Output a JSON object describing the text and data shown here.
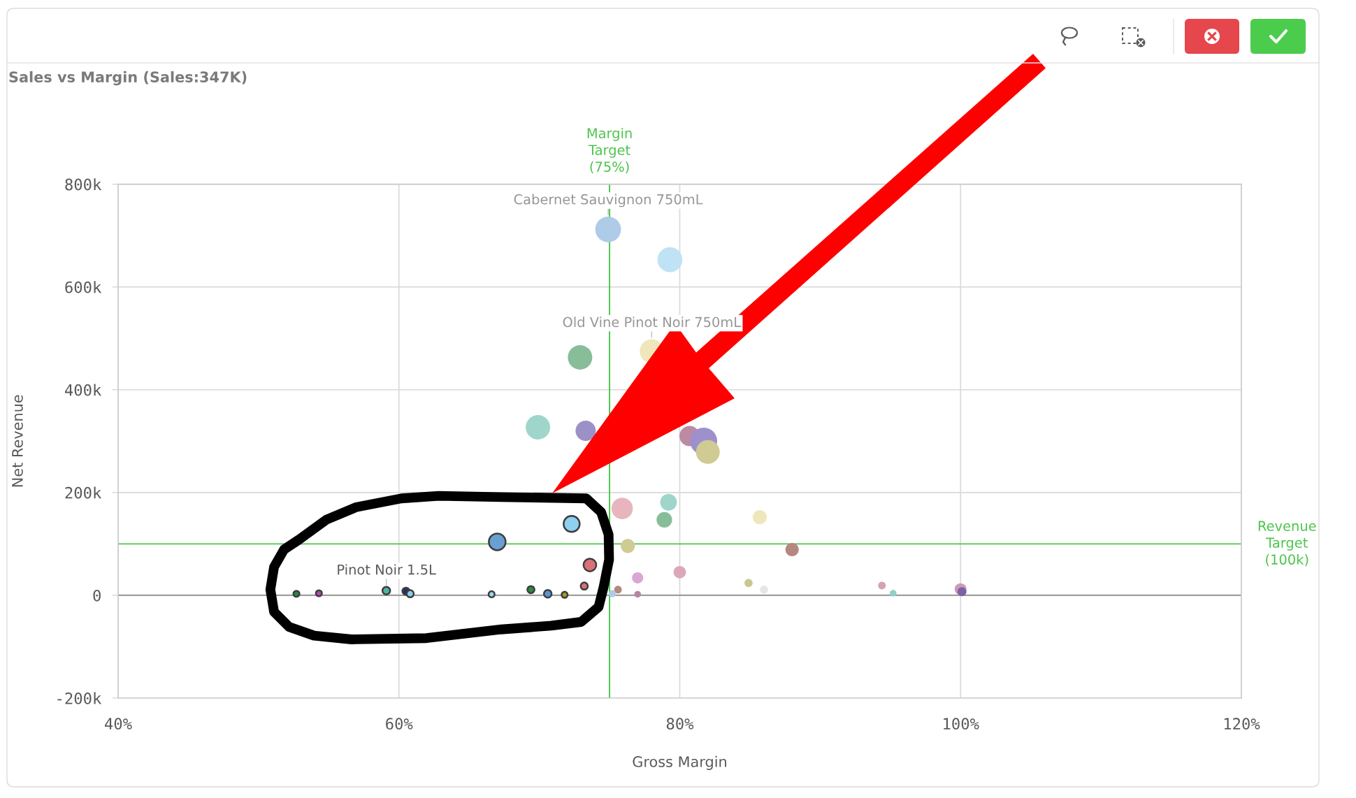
{
  "chart_data": {
    "type": "bubble",
    "title": "Sales vs Margin (Sales:347K)",
    "xlabel": "Gross Margin",
    "ylabel": "Net Revenue",
    "series": [
      {
        "x": [
          74.9,
          79.3,
          72.9,
          78.0,
          69.9,
          73.3,
          80.7,
          81.7,
          82.0,
          75.9,
          79.2,
          78.9,
          85.7,
          76.3,
          88.0,
          80.0,
          77.0,
          84.9,
          86.0,
          75.6,
          75.2,
          77.0,
          94.4,
          95.2,
          100.0,
          100.1
        ],
        "values": [
          712000,
          653000,
          463000,
          475000,
          327000,
          320000,
          310000,
          300000,
          279000,
          169000,
          181000,
          147000,
          152000,
          96000,
          89000,
          45000,
          34000,
          24000,
          11000,
          11000,
          3000,
          2000,
          19000,
          4000,
          12000,
          7000
        ],
        "sizes": [
          0.9,
          0.85,
          0.81,
          0.77,
          0.81,
          0.56,
          0.56,
          1.0,
          0.77,
          0.62,
          0.38,
          0.33,
          0.27,
          0.27,
          0.24,
          0.21,
          0.17,
          0.09,
          0.09,
          0.08,
          0.07,
          0.06,
          0.08,
          0.06,
          0.19,
          0.11
        ],
        "colors": [
          "#aecbe8",
          "#c0e2f5",
          "#88bd99",
          "#efe6bb",
          "#a0d5cc",
          "#9b91c7",
          "#bc8aa3",
          "#9d90cc",
          "#cfcb92",
          "#e8b5be",
          "#a0d5cc",
          "#88bd99",
          "#f0e6bb",
          "#cfcb92",
          "#b5887e",
          "#dca7bb",
          "#dba6d6",
          "#c9c78f",
          "#e6e6e6",
          "#b5887e",
          "#aecbe8",
          "#b883a3",
          "#d6a2b6",
          "#90d0c6",
          "#cc9ab5",
          "#7c61a8"
        ]
      },
      {
        "x": [
          52.7,
          54.3,
          59.1,
          60.5,
          60.8,
          66.6,
          67.0,
          72.3,
          73.6,
          73.2,
          69.4,
          70.6,
          71.8
        ],
        "values": [
          3000,
          4000,
          9000,
          8000,
          3000,
          2000,
          104000,
          139000,
          59000,
          18000,
          11000,
          3000,
          1000
        ],
        "sizes": [
          0.05,
          0.05,
          0.08,
          0.07,
          0.07,
          0.05,
          0.38,
          0.35,
          0.22,
          0.07,
          0.07,
          0.08,
          0.05
        ],
        "colors": [
          "#238a43",
          "#b049b5",
          "#4db3a2",
          "#2b2b6e",
          "#8ccbef",
          "#9dd3f0",
          "#6a9fd2",
          "#8fd0f0",
          "#d9707a",
          "#d9707a",
          "#2a8a48",
          "#5a95d0",
          "#a09a20"
        ],
        "line_style": "solid"
      }
    ],
    "xlim": [
      40,
      120
    ],
    "xticks": [
      {
        "value": 40,
        "label": "40%"
      },
      {
        "value": 60,
        "label": "60%"
      },
      {
        "value": 80,
        "label": "80%"
      },
      {
        "value": 100,
        "label": "100%"
      },
      {
        "value": 120,
        "label": "120%"
      }
    ],
    "ylim": [
      -200000,
      800000
    ],
    "yticks": [
      {
        "value": -200000,
        "label": "-200k"
      },
      0,
      {
        "value": 200000,
        "label": "200k"
      },
      {
        "value": 400000,
        "label": "400k"
      },
      {
        "value": 600000,
        "label": "600k"
      },
      {
        "value": 800000,
        "label": "800k"
      }
    ],
    "grid": true,
    "ref_lines": [
      {
        "axis": "x",
        "value": 75,
        "label": "Margin Target (75%)",
        "color": "#4cc44c"
      },
      {
        "axis": "y",
        "value": 100000,
        "label": "Revenue Target (100k)",
        "color": "#4cc44c"
      }
    ],
    "annotations": [
      {
        "text": "Cabernet Sauvignon 750mL",
        "x": 74.9,
        "y": 712000
      },
      {
        "text": "Old Vine Pinot Noir 750mL",
        "x": 78.0,
        "y": 475000
      },
      {
        "text": "Pinot Noir 1.5L",
        "x": 59.1,
        "y": 9000
      }
    ]
  }
}
